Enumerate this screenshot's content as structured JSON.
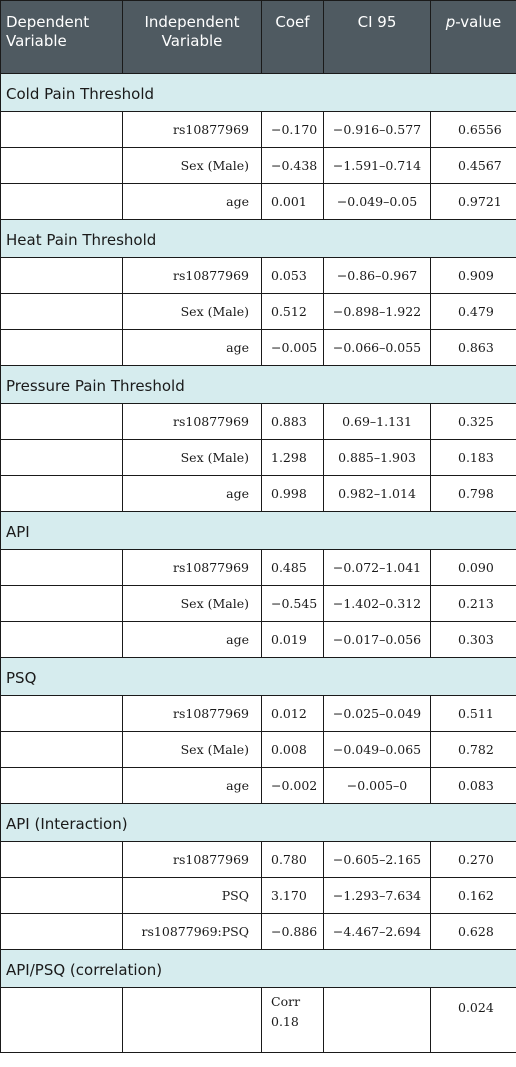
{
  "headers": {
    "dependent_line1": "Dependent",
    "dependent_line2": "Variable",
    "independent_line1": "Independent",
    "independent_line2": "Variable",
    "coef": "Coef",
    "ci": "CI 95",
    "pvalue_p": "p",
    "pvalue_rest": "-value"
  },
  "sections": [
    {
      "title": "Cold Pain Threshold",
      "rows": [
        {
          "independent": "rs10877969",
          "coef": "−0.170",
          "ci": "−0.916–0.577",
          "p": "0.6556"
        },
        {
          "independent": "Sex (Male)",
          "coef": "−0.438",
          "ci": "−1.591–0.714",
          "p": "0.4567"
        },
        {
          "independent": "age",
          "coef": "0.001",
          "ci": "−0.049–0.05",
          "p": "0.9721"
        }
      ]
    },
    {
      "title": "Heat Pain Threshold",
      "rows": [
        {
          "independent": "rs10877969",
          "coef": "0.053",
          "ci": "−0.86–0.967",
          "p": "0.909"
        },
        {
          "independent": "Sex (Male)",
          "coef": "0.512",
          "ci": "−0.898–1.922",
          "p": "0.479"
        },
        {
          "independent": "age",
          "coef": "−0.005",
          "ci": "−0.066–0.055",
          "p": "0.863"
        }
      ]
    },
    {
      "title": "Pressure Pain Threshold",
      "rows": [
        {
          "independent": "rs10877969",
          "coef": "0.883",
          "ci": "0.69–1.131",
          "p": "0.325"
        },
        {
          "independent": "Sex (Male)",
          "coef": "1.298",
          "ci": "0.885–1.903",
          "p": "0.183"
        },
        {
          "independent": "age",
          "coef": "0.998",
          "ci": "0.982–1.014",
          "p": "0.798"
        }
      ]
    },
    {
      "title": "API",
      "rows": [
        {
          "independent": "rs10877969",
          "coef": "0.485",
          "ci": "−0.072–1.041",
          "p": "0.090"
        },
        {
          "independent": "Sex (Male)",
          "coef": "−0.545",
          "ci": "−1.402–0.312",
          "p": "0.213"
        },
        {
          "independent": "age",
          "coef": "0.019",
          "ci": "−0.017–0.056",
          "p": "0.303"
        }
      ]
    },
    {
      "title": "PSQ",
      "rows": [
        {
          "independent": "rs10877969",
          "coef": "0.012",
          "ci": "−0.025–0.049",
          "p": "0.511"
        },
        {
          "independent": "Sex (Male)",
          "coef": "0.008",
          "ci": "−0.049–0.065",
          "p": "0.782"
        },
        {
          "independent": "age",
          "coef": "−0.002",
          "ci": "−0.005–0",
          "p": "0.083"
        }
      ]
    },
    {
      "title": "API (Interaction)",
      "rows": [
        {
          "independent": "rs10877969",
          "coef": "0.780",
          "ci": "−0.605–2.165",
          "p": "0.270"
        },
        {
          "independent": "PSQ",
          "coef": "3.170",
          "ci": "−1.293–7.634",
          "p": "0.162"
        },
        {
          "independent": "rs10877969:PSQ",
          "coef": "−0.886",
          "ci": "−4.467–2.694",
          "p": "0.628"
        }
      ]
    }
  ],
  "correlation": {
    "title": "API/PSQ (correlation)",
    "coef_line1": "Corr",
    "coef_line2": "0.18",
    "p": "0.024"
  }
}
